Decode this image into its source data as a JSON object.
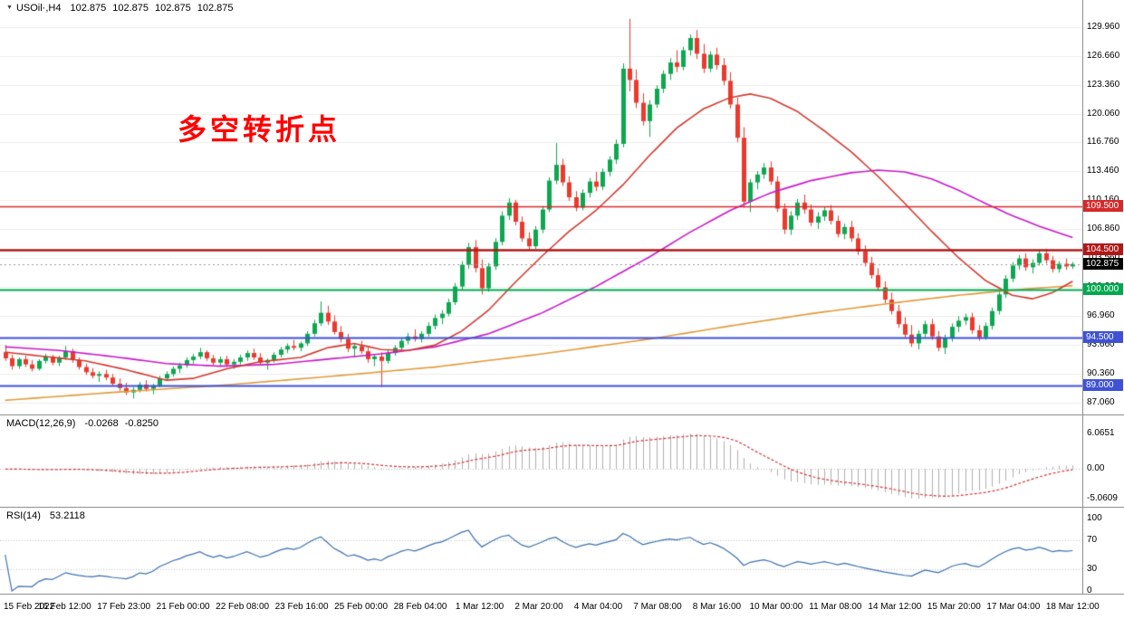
{
  "header": {
    "collapse_icon": "▼",
    "symbol": "USOil·,H4",
    "ohlc": [
      "102.875",
      "102.875",
      "102.875",
      "102.875"
    ]
  },
  "annotation": {
    "text": "多空转折点",
    "color": "#ff0000"
  },
  "time_axis": {
    "labels": [
      "15 Feb 2022",
      "16 Feb 12:00",
      "17 Feb 23:00",
      "21 Feb 00:00",
      "22 Feb 08:00",
      "23 Feb 16:00",
      "25 Feb 00:00",
      "28 Feb 04:00",
      "1 Mar 12:00",
      "2 Mar 20:00",
      "4 Mar 04:00",
      "7 Mar 08:00",
      "8 Mar 16:00",
      "10 Mar 00:00",
      "11 Mar 08:00",
      "14 Mar 12:00",
      "15 Mar 20:00",
      "17 Mar 04:00",
      "18 Mar 12:00"
    ]
  },
  "chart_data": {
    "type": "candlestick",
    "title": "USOil H4",
    "symbol": "USOil",
    "timeframe": "H4",
    "ylim": [
      86.3,
      131.8
    ],
    "y_ticks": [
      129.96,
      126.66,
      123.36,
      120.06,
      116.76,
      113.46,
      110.16,
      106.86,
      103.56,
      100.26,
      96.96,
      93.66,
      90.36,
      87.06
    ],
    "colors": {
      "up": "#0da750",
      "down": "#ea3a2e",
      "ma_fast": "#d03a30",
      "ma_medium": "#c818c8",
      "ma_slow": "#e09a3a",
      "macd_hist": "#aeaeae",
      "macd_signal": "#d23434",
      "rsi": "#3a6fb0",
      "grid": "#ededed"
    },
    "hlines": [
      {
        "price": 109.5,
        "label": "109.500",
        "color": "#d42a2a",
        "width": 1.5
      },
      {
        "price": 104.5,
        "label": "104.500",
        "color": "#b01818",
        "width": 2.5
      },
      {
        "price": 100.0,
        "label": "100.000",
        "color": "#00a94f",
        "width": 2
      },
      {
        "price": 94.5,
        "label": "94.500",
        "color": "#3f51d6",
        "width": 2
      },
      {
        "price": 89.0,
        "label": "89.000",
        "color": "#3f51d6",
        "width": 2
      }
    ],
    "current_price": {
      "value": 102.875,
      "label": "102.875",
      "tag_bg": "#000000"
    },
    "ohlc": [
      [
        92.8,
        93.6,
        91.8,
        92.1
      ],
      [
        92.1,
        92.5,
        90.8,
        91.2
      ],
      [
        91.2,
        92.2,
        90.9,
        92.0
      ],
      [
        92.0,
        92.4,
        91.1,
        91.4
      ],
      [
        91.4,
        91.9,
        90.6,
        90.9
      ],
      [
        90.9,
        92.0,
        90.7,
        91.8
      ],
      [
        91.8,
        92.6,
        91.5,
        92.3
      ],
      [
        92.3,
        92.5,
        91.3,
        91.6
      ],
      [
        91.6,
        92.4,
        91.2,
        92.2
      ],
      [
        92.2,
        93.5,
        91.9,
        92.9
      ],
      [
        92.9,
        93.2,
        91.6,
        91.9
      ],
      [
        91.9,
        92.2,
        90.8,
        91.1
      ],
      [
        91.1,
        91.5,
        90.2,
        90.5
      ],
      [
        90.5,
        91.0,
        89.8,
        90.1
      ],
      [
        90.1,
        90.6,
        89.4,
        90.3
      ],
      [
        90.3,
        90.8,
        89.6,
        89.9
      ],
      [
        89.9,
        90.3,
        88.9,
        89.2
      ],
      [
        89.2,
        89.8,
        88.4,
        88.7
      ],
      [
        88.7,
        89.3,
        87.9,
        88.2
      ],
      [
        88.2,
        88.8,
        87.5,
        88.5
      ],
      [
        88.5,
        89.4,
        88.2,
        89.1
      ],
      [
        89.1,
        89.6,
        88.3,
        88.6
      ],
      [
        88.6,
        89.2,
        88.0,
        89.0
      ],
      [
        89.0,
        90.1,
        88.8,
        89.8
      ],
      [
        89.8,
        90.6,
        89.5,
        90.3
      ],
      [
        90.3,
        91.2,
        90.0,
        90.9
      ],
      [
        90.9,
        91.6,
        90.4,
        91.3
      ],
      [
        91.3,
        92.2,
        91.0,
        91.9
      ],
      [
        91.9,
        92.6,
        91.5,
        92.3
      ],
      [
        92.3,
        93.3,
        92.0,
        92.8
      ],
      [
        92.8,
        93.0,
        91.8,
        92.1
      ],
      [
        92.1,
        92.5,
        91.3,
        91.6
      ],
      [
        91.6,
        92.3,
        91.2,
        92.0
      ],
      [
        92.0,
        92.4,
        91.1,
        91.4
      ],
      [
        91.4,
        92.0,
        90.9,
        91.7
      ],
      [
        91.7,
        92.5,
        91.4,
        92.2
      ],
      [
        92.2,
        93.0,
        91.8,
        92.7
      ],
      [
        92.7,
        93.2,
        91.9,
        92.2
      ],
      [
        92.2,
        92.7,
        91.3,
        91.6
      ],
      [
        91.6,
        92.1,
        90.8,
        91.9
      ],
      [
        91.9,
        92.8,
        91.6,
        92.5
      ],
      [
        92.5,
        93.4,
        92.2,
        93.1
      ],
      [
        93.1,
        93.8,
        92.7,
        93.5
      ],
      [
        93.5,
        94.2,
        93.0,
        93.3
      ],
      [
        93.3,
        94.0,
        92.9,
        93.8
      ],
      [
        93.8,
        95.2,
        93.5,
        94.9
      ],
      [
        94.9,
        96.5,
        94.6,
        96.1
      ],
      [
        96.1,
        98.6,
        95.8,
        97.3
      ],
      [
        97.3,
        98.1,
        95.9,
        96.3
      ],
      [
        96.3,
        97.0,
        94.8,
        95.1
      ],
      [
        95.1,
        95.8,
        93.9,
        94.3
      ],
      [
        94.3,
        94.9,
        92.8,
        93.2
      ],
      [
        93.2,
        93.8,
        92.2,
        93.5
      ],
      [
        93.5,
        94.1,
        92.6,
        92.9
      ],
      [
        92.9,
        93.4,
        91.6,
        92.0
      ],
      [
        92.0,
        92.6,
        91.2,
        92.3
      ],
      [
        92.3,
        92.8,
        88.8,
        91.8
      ],
      [
        91.8,
        93.0,
        91.5,
        92.7
      ],
      [
        92.7,
        93.6,
        92.4,
        93.3
      ],
      [
        93.3,
        94.4,
        93.0,
        94.1
      ],
      [
        94.1,
        95.0,
        93.7,
        94.6
      ],
      [
        94.6,
        95.4,
        94.0,
        94.3
      ],
      [
        94.3,
        95.2,
        93.9,
        94.9
      ],
      [
        94.9,
        96.2,
        94.6,
        95.8
      ],
      [
        95.8,
        97.1,
        95.4,
        96.7
      ],
      [
        96.7,
        97.6,
        96.0,
        97.2
      ],
      [
        97.2,
        98.9,
        96.9,
        98.5
      ],
      [
        98.5,
        100.7,
        98.2,
        100.3
      ],
      [
        100.3,
        103.2,
        99.9,
        102.8
      ],
      [
        102.8,
        105.3,
        102.3,
        104.8
      ],
      [
        104.8,
        105.6,
        101.9,
        102.4
      ],
      [
        102.4,
        103.4,
        99.4,
        100.1
      ],
      [
        100.1,
        103.0,
        99.7,
        102.6
      ],
      [
        102.6,
        105.8,
        102.2,
        105.4
      ],
      [
        105.4,
        108.9,
        105.0,
        108.4
      ],
      [
        108.4,
        110.4,
        107.9,
        109.9
      ],
      [
        109.9,
        110.2,
        107.3,
        107.7
      ],
      [
        107.7,
        108.3,
        105.4,
        105.8
      ],
      [
        105.8,
        106.5,
        104.5,
        104.9
      ],
      [
        104.9,
        107.2,
        104.6,
        106.8
      ],
      [
        106.8,
        109.5,
        106.4,
        109.1
      ],
      [
        109.1,
        112.8,
        108.8,
        112.4
      ],
      [
        112.4,
        116.7,
        112.0,
        114.2
      ],
      [
        114.2,
        114.9,
        111.8,
        112.2
      ],
      [
        112.2,
        112.9,
        110.1,
        110.5
      ],
      [
        110.5,
        111.2,
        108.9,
        109.3
      ],
      [
        109.3,
        111.4,
        109.0,
        111.0
      ],
      [
        111.0,
        112.7,
        110.5,
        112.3
      ],
      [
        112.3,
        113.4,
        111.2,
        111.7
      ],
      [
        111.7,
        113.8,
        111.3,
        113.4
      ],
      [
        113.4,
        115.2,
        112.9,
        114.8
      ],
      [
        114.8,
        117.1,
        114.3,
        116.6
      ],
      [
        116.6,
        125.8,
        116.2,
        125.2
      ],
      [
        125.2,
        130.9,
        122.6,
        123.9
      ],
      [
        123.9,
        125.1,
        120.7,
        121.3
      ],
      [
        121.3,
        122.4,
        118.7,
        119.2
      ],
      [
        119.2,
        121.6,
        117.4,
        121.1
      ],
      [
        121.1,
        123.3,
        120.7,
        122.9
      ],
      [
        122.9,
        125.0,
        122.4,
        124.6
      ],
      [
        124.6,
        126.4,
        123.9,
        125.9
      ],
      [
        125.9,
        127.3,
        124.8,
        125.4
      ],
      [
        125.4,
        127.7,
        125.0,
        127.3
      ],
      [
        127.3,
        129.1,
        126.7,
        128.7
      ],
      [
        128.7,
        129.6,
        126.3,
        126.9
      ],
      [
        126.9,
        128.0,
        124.7,
        125.2
      ],
      [
        125.2,
        127.2,
        124.8,
        126.8
      ],
      [
        126.8,
        127.6,
        125.1,
        125.6
      ],
      [
        125.6,
        126.4,
        123.3,
        123.8
      ],
      [
        123.8,
        124.8,
        120.6,
        121.1
      ],
      [
        121.1,
        121.9,
        116.8,
        117.3
      ],
      [
        117.3,
        118.5,
        109.3,
        110.0
      ],
      [
        110.0,
        112.6,
        108.8,
        112.2
      ],
      [
        112.2,
        113.5,
        111.4,
        113.1
      ],
      [
        113.1,
        114.4,
        112.6,
        113.9
      ],
      [
        113.9,
        114.6,
        111.9,
        112.3
      ],
      [
        112.3,
        112.9,
        108.8,
        109.2
      ],
      [
        109.2,
        109.8,
        106.3,
        106.8
      ],
      [
        106.8,
        108.9,
        106.2,
        108.4
      ],
      [
        108.4,
        110.3,
        107.9,
        109.9
      ],
      [
        109.9,
        110.8,
        108.6,
        109.1
      ],
      [
        109.1,
        109.7,
        107.2,
        107.6
      ],
      [
        107.6,
        108.8,
        106.9,
        108.3
      ],
      [
        108.3,
        109.4,
        107.8,
        109.0
      ],
      [
        109.0,
        109.6,
        107.4,
        107.8
      ],
      [
        107.8,
        108.4,
        105.9,
        106.3
      ],
      [
        106.3,
        107.5,
        105.7,
        107.1
      ],
      [
        107.1,
        107.8,
        105.4,
        105.8
      ],
      [
        105.8,
        106.4,
        103.9,
        104.3
      ],
      [
        104.3,
        105.0,
        102.6,
        103.0
      ],
      [
        103.0,
        103.7,
        101.2,
        101.6
      ],
      [
        101.6,
        102.4,
        99.8,
        100.2
      ],
      [
        100.2,
        100.9,
        98.4,
        98.8
      ],
      [
        98.8,
        99.6,
        97.1,
        97.5
      ],
      [
        97.5,
        98.2,
        95.6,
        96.0
      ],
      [
        96.0,
        96.8,
        94.4,
        94.8
      ],
      [
        94.8,
        95.9,
        93.4,
        93.8
      ],
      [
        93.8,
        95.3,
        93.1,
        94.9
      ],
      [
        94.9,
        96.4,
        94.5,
        96.0
      ],
      [
        96.0,
        96.6,
        94.2,
        94.6
      ],
      [
        94.6,
        95.2,
        92.9,
        93.3
      ],
      [
        93.3,
        94.8,
        92.6,
        94.4
      ],
      [
        94.4,
        96.1,
        94.0,
        95.7
      ],
      [
        95.7,
        96.9,
        95.1,
        96.4
      ],
      [
        96.4,
        97.2,
        95.9,
        96.8
      ],
      [
        96.8,
        97.3,
        94.9,
        95.3
      ],
      [
        95.3,
        95.9,
        94.1,
        94.5
      ],
      [
        94.5,
        96.2,
        94.2,
        95.8
      ],
      [
        95.8,
        97.9,
        95.4,
        97.5
      ],
      [
        97.5,
        99.8,
        97.1,
        99.4
      ],
      [
        99.4,
        101.6,
        99.0,
        101.2
      ],
      [
        101.2,
        103.1,
        100.8,
        102.7
      ],
      [
        102.7,
        103.9,
        102.2,
        103.5
      ],
      [
        103.5,
        104.1,
        102.1,
        102.5
      ],
      [
        102.5,
        103.4,
        101.8,
        103.0
      ],
      [
        103.0,
        104.5,
        102.7,
        104.1
      ],
      [
        104.1,
        104.6,
        102.9,
        103.3
      ],
      [
        103.3,
        103.8,
        101.9,
        102.3
      ],
      [
        102.3,
        103.2,
        101.9,
        102.9
      ],
      [
        102.9,
        103.5,
        102.2,
        102.6
      ],
      [
        102.6,
        103.1,
        102.3,
        102.875
      ]
    ],
    "overlays": [
      {
        "name": "ma-slow",
        "color": "#e09a3a",
        "anchors": [
          [
            0,
            87.3
          ],
          [
            16,
            88.2
          ],
          [
            32,
            89.0
          ],
          [
            48,
            90.0
          ],
          [
            64,
            91.1
          ],
          [
            80,
            92.6
          ],
          [
            96,
            94.3
          ],
          [
            108,
            95.8
          ],
          [
            120,
            97.2
          ],
          [
            132,
            98.4
          ],
          [
            142,
            99.3
          ],
          [
            150,
            99.9
          ],
          [
            159,
            100.4
          ]
        ]
      },
      {
        "name": "ma-medium",
        "color": "#c818c8",
        "anchors": [
          [
            0,
            93.4
          ],
          [
            8,
            93.0
          ],
          [
            16,
            92.3
          ],
          [
            24,
            91.5
          ],
          [
            32,
            91.2
          ],
          [
            40,
            91.4
          ],
          [
            48,
            92.0
          ],
          [
            56,
            92.6
          ],
          [
            64,
            93.4
          ],
          [
            72,
            94.9
          ],
          [
            80,
            97.3
          ],
          [
            88,
            100.3
          ],
          [
            96,
            103.7
          ],
          [
            102,
            106.5
          ],
          [
            108,
            109.0
          ],
          [
            114,
            111.0
          ],
          [
            120,
            112.4
          ],
          [
            126,
            113.3
          ],
          [
            130,
            113.6
          ],
          [
            134,
            113.4
          ],
          [
            138,
            112.6
          ],
          [
            142,
            111.3
          ],
          [
            146,
            109.8
          ],
          [
            150,
            108.4
          ],
          [
            154,
            107.2
          ],
          [
            159,
            105.9
          ]
        ]
      },
      {
        "name": "ma-fast",
        "color": "#d03a30",
        "anchors": [
          [
            0,
            92.8
          ],
          [
            6,
            92.3
          ],
          [
            12,
            91.8
          ],
          [
            18,
            90.8
          ],
          [
            24,
            89.6
          ],
          [
            28,
            89.8
          ],
          [
            33,
            90.9
          ],
          [
            38,
            91.7
          ],
          [
            44,
            92.2
          ],
          [
            48,
            93.3
          ],
          [
            52,
            93.8
          ],
          [
            56,
            93.1
          ],
          [
            60,
            93.0
          ],
          [
            64,
            93.6
          ],
          [
            68,
            95.2
          ],
          [
            72,
            97.6
          ],
          [
            76,
            100.8
          ],
          [
            80,
            103.8
          ],
          [
            84,
            106.6
          ],
          [
            88,
            109.0
          ],
          [
            92,
            111.9
          ],
          [
            96,
            115.3
          ],
          [
            100,
            118.4
          ],
          [
            104,
            120.6
          ],
          [
            108,
            121.9
          ],
          [
            111,
            122.3
          ],
          [
            114,
            121.8
          ],
          [
            118,
            120.3
          ],
          [
            122,
            118.1
          ],
          [
            126,
            115.7
          ],
          [
            130,
            112.9
          ],
          [
            134,
            109.8
          ],
          [
            138,
            106.6
          ],
          [
            142,
            103.6
          ],
          [
            146,
            101.0
          ],
          [
            150,
            99.3
          ],
          [
            153,
            98.9
          ],
          [
            156,
            99.6
          ],
          [
            159,
            100.9
          ]
        ]
      }
    ],
    "indicators": {
      "macd": {
        "label": "MACD(12,26,9)",
        "values": [
          "-0.0268",
          "-0.8250"
        ],
        "params": [
          12,
          26,
          9
        ],
        "axis": [
          {
            "v": 6.0651,
            "t": "6.0651"
          },
          {
            "v": 0,
            "t": "0.00"
          },
          {
            "v": -5.0609,
            "t": "-5.0609"
          }
        ]
      },
      "rsi": {
        "label": "RSI(14)",
        "value": "53.2118",
        "period": 14,
        "axis": [
          {
            "v": 100,
            "t": "100"
          },
          {
            "v": 70,
            "t": "70"
          },
          {
            "v": 30,
            "t": "30"
          },
          {
            "v": 0,
            "t": "0"
          }
        ],
        "levels": [
          70,
          30
        ]
      }
    }
  }
}
